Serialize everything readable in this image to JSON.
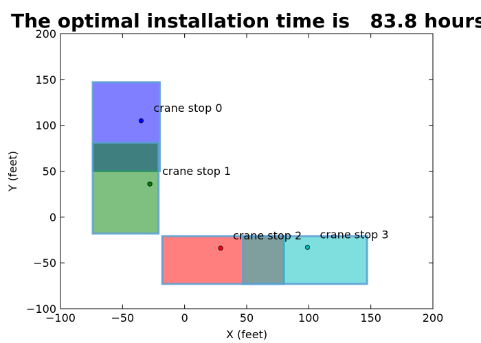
{
  "chart_data": {
    "type": "scatter",
    "title": "The optimal installation time is   83.8 hours",
    "xlabel": "X (feet)",
    "ylabel": "Y (feet)",
    "xlim": [
      -100,
      200
    ],
    "ylim": [
      -100,
      200
    ],
    "xticks": [
      -100,
      -50,
      0,
      50,
      100,
      150,
      200
    ],
    "yticks": [
      -100,
      -50,
      0,
      50,
      100,
      150,
      200
    ],
    "xtick_labels": [
      "−100",
      "−50",
      "0",
      "50",
      "100",
      "150",
      "200"
    ],
    "ytick_labels": [
      "−100",
      "−50",
      "0",
      "50",
      "100",
      "150",
      "200"
    ],
    "grid": false,
    "regions": [
      {
        "x0": -74,
        "x1": -20,
        "y0": 50,
        "y1": 147,
        "color": "#0000ff"
      },
      {
        "x0": -74,
        "x1": -21,
        "y0": -18,
        "y1": 81,
        "color": "#008000"
      },
      {
        "x0": -18,
        "x1": 80,
        "y0": -73,
        "y1": -21,
        "color": "#ff0000"
      },
      {
        "x0": 47,
        "x1": 147,
        "y0": -73,
        "y1": -21,
        "color": "#00bfbf"
      }
    ],
    "crane_stops": [
      {
        "label": "crane stop 0",
        "x": -35,
        "y": 105,
        "color": "#0000ff"
      },
      {
        "label": "crane stop 1",
        "x": -28,
        "y": 36,
        "color": "#008000"
      },
      {
        "label": "crane stop 2",
        "x": 29,
        "y": -34,
        "color": "#ff0000"
      },
      {
        "label": "crane stop 3",
        "x": 99,
        "y": -33,
        "color": "#00bfbf"
      }
    ]
  }
}
